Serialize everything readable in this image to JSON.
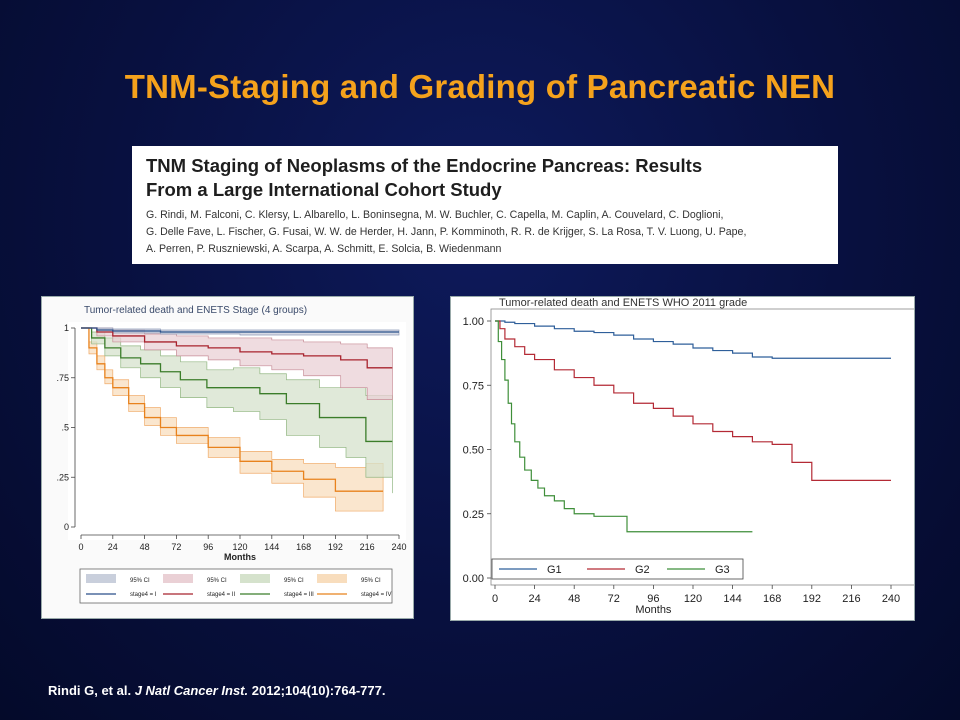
{
  "slide": {
    "title": "TNM-Staging and Grading of Pancreatic NEN",
    "paper_title_line1": "TNM Staging of Neoplasms of the Endocrine Pancreas: Results",
    "paper_title_line2": "From a Large International Cohort Study",
    "authors_line1": "G. Rindi, M. Falconi, C. Klersy, L. Albarello, L. Boninsegna, M. W. Buchler, C. Capella, M. Caplin, A. Couvelard, C. Doglioni,",
    "authors_line2": "G. Delle Fave, L. Fischer, G. Fusai, W. W. de Herder, H. Jann, P. Komminoth, R. R. de Krijger, S. La Rosa, T. V. Luong, U. Pape,",
    "authors_line3": "A. Perren, P. Ruszniewski, A. Scarpa, A. Schmitt, E. Solcia, B. Wiedenmann",
    "citation_a": "Rindi G, et al. ",
    "citation_journal": "J Natl Cancer Inst.",
    "citation_b": " 2012;104(10):764-777."
  },
  "colors": {
    "title": "#f5a21c",
    "stage_I": "#2a4f8a",
    "stage_II": "#a8232e",
    "stage_III": "#3b7d2a",
    "stage_IV": "#e8821c",
    "ci_I": "#c9cfdc",
    "ci_II": "#ead0d5",
    "ci_III": "#d5e2cc",
    "ci_IV": "#f8ddbd",
    "G1": "#2f5f9a",
    "G2": "#b42a35",
    "G3": "#3f8f3a"
  },
  "chart_data": [
    {
      "type": "line",
      "title": "Tumor-related death and ENETS Stage (4 groups)",
      "xlabel": "Months",
      "ylabel": "",
      "xlim": [
        0,
        240
      ],
      "ylim": [
        0,
        1
      ],
      "x_ticks": [
        "0",
        "24",
        "48",
        "72",
        "96",
        "120",
        "144",
        "168",
        "192",
        "216",
        "240"
      ],
      "y_ticks": [
        "0",
        ".25",
        ".5",
        ".75",
        "1"
      ],
      "legend": [
        "95% CI",
        "95% CI",
        "95% CI",
        "95% CI",
        "stage4 = I",
        "stage4 = II",
        "stage4 = III",
        "stage4 = IV"
      ],
      "series": [
        {
          "name": "stage4 = I",
          "x": [
            0,
            12,
            24,
            60,
            120,
            240
          ],
          "y": [
            1,
            0.99,
            0.985,
            0.98,
            0.98,
            0.98
          ],
          "ci_low": [
            1,
            0.98,
            0.975,
            0.97,
            0.965,
            0.965
          ],
          "ci_high": [
            1,
            1,
            0.995,
            0.99,
            0.99,
            0.99
          ]
        },
        {
          "name": "stage4 = II",
          "x": [
            0,
            12,
            24,
            48,
            72,
            96,
            120,
            144,
            168,
            196,
            216,
            235
          ],
          "y": [
            1,
            0.98,
            0.96,
            0.93,
            0.91,
            0.9,
            0.88,
            0.87,
            0.86,
            0.84,
            0.8,
            0.8
          ],
          "ci_low": [
            1,
            0.96,
            0.93,
            0.89,
            0.86,
            0.84,
            0.81,
            0.79,
            0.76,
            0.7,
            0.64,
            0.64
          ],
          "ci_high": [
            1,
            1,
            0.99,
            0.97,
            0.96,
            0.95,
            0.95,
            0.94,
            0.93,
            0.92,
            0.9,
            0.9
          ]
        },
        {
          "name": "stage4 = III",
          "x": [
            0,
            8,
            18,
            30,
            45,
            60,
            75,
            95,
            115,
            135,
            155,
            180,
            200,
            215,
            235
          ],
          "y": [
            1,
            0.95,
            0.9,
            0.85,
            0.82,
            0.78,
            0.74,
            0.7,
            0.7,
            0.67,
            0.62,
            0.55,
            0.55,
            0.43,
            0.43
          ],
          "ci_low": [
            1,
            0.92,
            0.86,
            0.8,
            0.75,
            0.7,
            0.65,
            0.6,
            0.58,
            0.54,
            0.46,
            0.4,
            0.35,
            0.25,
            0.17
          ],
          "ci_high": [
            1,
            0.98,
            0.95,
            0.91,
            0.89,
            0.86,
            0.83,
            0.79,
            0.8,
            0.77,
            0.74,
            0.7,
            0.7,
            0.66,
            0.66
          ]
        },
        {
          "name": "stage4 = IV",
          "x": [
            0,
            6,
            12,
            18,
            24,
            36,
            48,
            60,
            72,
            96,
            120,
            144,
            168,
            192,
            215,
            228
          ],
          "y": [
            1,
            0.9,
            0.82,
            0.75,
            0.7,
            0.62,
            0.55,
            0.5,
            0.46,
            0.4,
            0.33,
            0.28,
            0.24,
            0.18,
            0.18,
            0.18
          ],
          "ci_low": [
            1,
            0.87,
            0.79,
            0.72,
            0.66,
            0.58,
            0.51,
            0.46,
            0.42,
            0.35,
            0.27,
            0.22,
            0.15,
            0.08,
            0.08,
            0.08
          ],
          "ci_high": [
            1,
            0.93,
            0.86,
            0.79,
            0.74,
            0.66,
            0.6,
            0.55,
            0.5,
            0.45,
            0.38,
            0.34,
            0.32,
            0.3,
            0.32,
            0.32
          ]
        }
      ]
    },
    {
      "type": "line",
      "title": "Tumor-related death and ENETS WHO 2011 grade",
      "xlabel": "Months",
      "ylabel": "",
      "xlim": [
        0,
        240
      ],
      "ylim": [
        0,
        1
      ],
      "x_ticks": [
        "0",
        "24",
        "48",
        "72",
        "96",
        "120",
        "144",
        "168",
        "192",
        "216",
        "240"
      ],
      "y_ticks": [
        "0.00",
        "0.25",
        "0.50",
        "0.75",
        "1.00"
      ],
      "legend": [
        "G1",
        "G2",
        "G3"
      ],
      "series": [
        {
          "name": "G1",
          "x": [
            0,
            6,
            12,
            24,
            36,
            48,
            60,
            72,
            84,
            96,
            108,
            120,
            132,
            144,
            156,
            168,
            180,
            192,
            216,
            240
          ],
          "y": [
            1,
            0.995,
            0.99,
            0.98,
            0.97,
            0.96,
            0.955,
            0.945,
            0.93,
            0.92,
            0.91,
            0.895,
            0.885,
            0.875,
            0.86,
            0.855,
            0.855,
            0.855,
            0.855,
            0.855
          ]
        },
        {
          "name": "G2",
          "x": [
            0,
            3,
            6,
            12,
            18,
            24,
            36,
            48,
            60,
            72,
            84,
            96,
            108,
            120,
            132,
            144,
            156,
            168,
            180,
            192,
            216,
            240
          ],
          "y": [
            1,
            0.97,
            0.93,
            0.9,
            0.87,
            0.85,
            0.81,
            0.78,
            0.75,
            0.72,
            0.68,
            0.66,
            0.63,
            0.6,
            0.57,
            0.55,
            0.53,
            0.52,
            0.45,
            0.38,
            0.38,
            0.38
          ]
        },
        {
          "name": "G3",
          "x": [
            0,
            2,
            4,
            6,
            8,
            10,
            12,
            15,
            18,
            22,
            26,
            30,
            36,
            42,
            48,
            60,
            72,
            80,
            100,
            130,
            156
          ],
          "y": [
            1,
            0.92,
            0.85,
            0.77,
            0.68,
            0.6,
            0.53,
            0.47,
            0.42,
            0.38,
            0.35,
            0.32,
            0.3,
            0.27,
            0.25,
            0.24,
            0.24,
            0.18,
            0.18,
            0.18,
            0.18
          ]
        }
      ]
    }
  ]
}
